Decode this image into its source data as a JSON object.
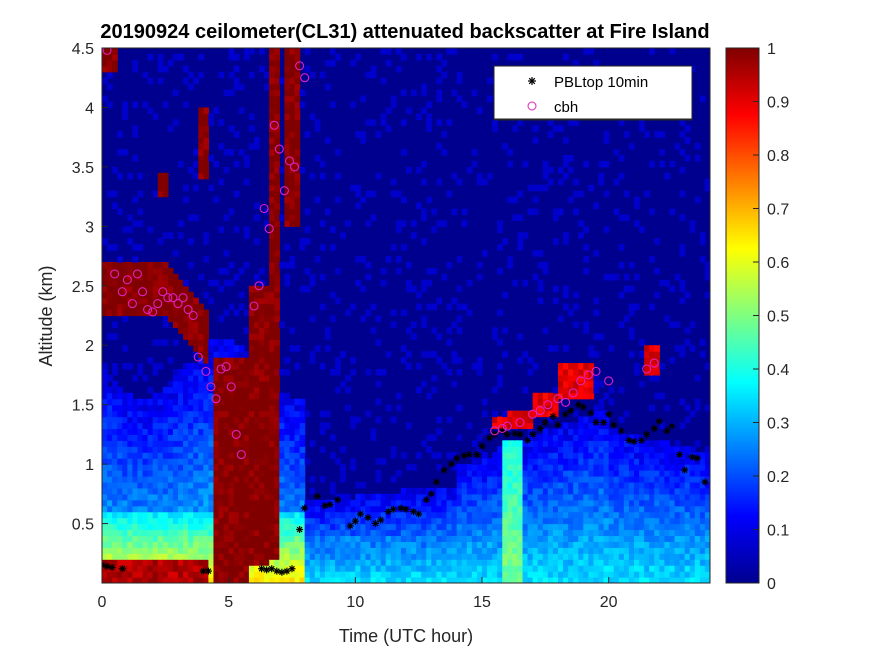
{
  "chart_data": {
    "type": "heatmap",
    "title": "20190924 ceilometer(CL31) attenuated backscatter at Fire Island",
    "xlabel": "Time (UTC hour)",
    "ylabel": "Altitude (km)",
    "xlim": [
      0,
      24
    ],
    "ylim": [
      0,
      4.5
    ],
    "x_ticks": [
      0,
      5,
      10,
      15,
      20
    ],
    "y_ticks": [
      0.5,
      1,
      1.5,
      2,
      2.5,
      3,
      3.5,
      4,
      4.5
    ],
    "colorbar": {
      "range": [
        0,
        1
      ],
      "ticks": [
        0,
        0.1,
        0.2,
        0.3,
        0.4,
        0.5,
        0.6,
        0.7,
        0.8,
        0.9,
        1
      ],
      "colormap": "jet"
    },
    "colors": {
      "pbl_marker": "#000000",
      "cbh_marker": "#e020c0"
    },
    "legend": {
      "placement": "top-right"
    },
    "series": [
      {
        "name": "PBLtop 10min",
        "marker": "asterisk",
        "x": [
          0.0,
          0.2,
          0.4,
          0.8,
          4.0,
          4.2,
          6.3,
          6.5,
          6.7,
          6.9,
          7.1,
          7.3,
          7.5,
          7.8,
          8.0,
          8.5,
          8.8,
          9.0,
          9.3,
          9.8,
          10.0,
          10.2,
          10.5,
          10.8,
          11.0,
          11.3,
          11.5,
          11.8,
          12.0,
          12.3,
          12.5,
          12.8,
          13.0,
          13.2,
          13.5,
          13.8,
          14.0,
          14.3,
          14.5,
          14.8,
          15.0,
          15.3,
          15.5,
          15.8,
          16.0,
          16.3,
          16.5,
          16.8,
          17.0,
          17.3,
          17.5,
          17.8,
          18.0,
          18.3,
          18.5,
          18.8,
          19.0,
          19.3,
          19.5,
          19.8,
          20.0,
          20.2,
          20.5,
          20.8,
          21.0,
          21.3,
          21.5,
          21.8,
          22.0,
          22.3,
          22.5,
          22.8,
          23.0,
          23.3,
          23.5,
          23.8
        ],
        "y": [
          0.15,
          0.14,
          0.13,
          0.12,
          0.1,
          0.1,
          0.12,
          0.11,
          0.12,
          0.1,
          0.09,
          0.1,
          0.12,
          0.45,
          0.63,
          0.73,
          0.65,
          0.66,
          0.7,
          0.48,
          0.52,
          0.58,
          0.55,
          0.5,
          0.53,
          0.6,
          0.62,
          0.63,
          0.62,
          0.6,
          0.58,
          0.7,
          0.75,
          0.85,
          0.95,
          1.0,
          1.05,
          1.07,
          1.08,
          1.08,
          1.15,
          1.22,
          1.25,
          1.28,
          1.25,
          1.26,
          1.25,
          1.2,
          1.25,
          1.3,
          1.35,
          1.4,
          1.33,
          1.42,
          1.45,
          1.5,
          1.48,
          1.43,
          1.35,
          1.35,
          1.42,
          1.33,
          1.28,
          1.2,
          1.19,
          1.2,
          1.25,
          1.3,
          1.36,
          1.28,
          1.32,
          1.08,
          0.95,
          1.06,
          1.05,
          0.85
        ]
      },
      {
        "name": "cbh",
        "marker": "circle",
        "x": [
          0.2,
          0.5,
          0.8,
          1.0,
          1.2,
          1.4,
          1.6,
          1.8,
          2.0,
          2.2,
          2.4,
          2.6,
          2.8,
          3.0,
          3.2,
          3.4,
          3.6,
          3.8,
          4.1,
          4.3,
          4.5,
          4.7,
          4.9,
          5.1,
          5.3,
          5.5,
          6.0,
          6.2,
          6.4,
          6.6,
          6.8,
          7.0,
          7.2,
          7.4,
          7.6,
          7.8,
          8.0,
          15.5,
          15.8,
          16.0,
          16.5,
          17.0,
          17.3,
          17.6,
          18.0,
          18.3,
          18.6,
          18.9,
          19.2,
          19.5,
          20.0,
          21.5,
          21.8
        ],
        "y": [
          4.48,
          2.6,
          2.45,
          2.55,
          2.35,
          2.6,
          2.45,
          2.3,
          2.28,
          2.35,
          2.45,
          2.4,
          2.4,
          2.35,
          2.4,
          2.3,
          2.25,
          1.9,
          1.78,
          1.65,
          1.55,
          1.8,
          1.82,
          1.65,
          1.25,
          1.08,
          2.33,
          2.5,
          3.15,
          2.98,
          3.85,
          3.65,
          3.3,
          3.55,
          3.5,
          4.35,
          4.25,
          1.28,
          1.3,
          1.32,
          1.35,
          1.42,
          1.45,
          1.5,
          1.55,
          1.52,
          1.6,
          1.7,
          1.75,
          1.78,
          1.7,
          1.8,
          1.85
        ]
      }
    ]
  }
}
